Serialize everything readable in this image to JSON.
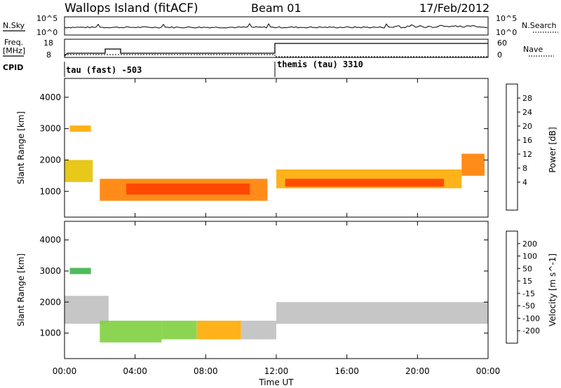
{
  "header": {
    "station": "Wallops Island (fitACF)",
    "beam": "Beam 01",
    "date": "17/Feb/2012"
  },
  "top_panels": {
    "nsky_label": "N.Sky",
    "nsearch_label": "N.Search",
    "nsky_ticks": [
      "10^5",
      "10^0"
    ],
    "nsearch_ticks": [
      "10^5",
      "10^0"
    ],
    "freq_label": "Freq.",
    "freq_unit": "[MHz]",
    "freq_ticks": [
      "18",
      "8"
    ],
    "nave_label": "Nave",
    "nave_ticks": [
      "60",
      "0"
    ],
    "cpid_label": "CPID",
    "cpid_segments": [
      {
        "name": "tau (fast) -503",
        "start_hour": 0
      },
      {
        "name": "themis (tau) 3310",
        "start_hour": 12
      }
    ]
  },
  "axes": {
    "y_label": "Slant Range [km]",
    "y_ticks": [
      "4000",
      "3000",
      "2000",
      "1000"
    ],
    "x_ticks": [
      "00:00",
      "04:00",
      "08:00",
      "12:00",
      "16:00",
      "20:00",
      "00:00"
    ],
    "x_label": "Time UT"
  },
  "colorbars": {
    "power": {
      "label": "Power [dB]",
      "ticks": [
        "28",
        "24",
        "20",
        "16",
        "12",
        "8",
        "4"
      ],
      "colors": [
        "#ff0000",
        "#ff4000",
        "#ff8000",
        "#ffaa00",
        "#e6c200",
        "#3cb44b",
        "#2e8b57",
        "#2255aa",
        "#0000ff"
      ]
    },
    "velocity": {
      "label": "Velocity [m s^-1]",
      "ticks": [
        "200",
        "100",
        "50",
        "15",
        "-15",
        "-50",
        "-100",
        "-200"
      ],
      "colors": [
        "#2233aa",
        "#2e8b57",
        "#3cb44b",
        "#80d040",
        "#c0c0c0",
        "#ffaa00",
        "#ff7700",
        "#ff4400",
        "#ff0000"
      ]
    }
  },
  "chart_data": [
    {
      "type": "heatmap",
      "title": "Power [dB]",
      "xlabel": "Time UT",
      "ylabel": "Slant Range [km]",
      "xlim_hours": [
        0,
        24
      ],
      "ylim_km": [
        180,
        4600
      ],
      "zlim": [
        0,
        30
      ],
      "regions": [
        {
          "t_start": 0.0,
          "t_end": 1.6,
          "r_low": 1300,
          "r_high": 2000,
          "value": 16
        },
        {
          "t_start": 0.3,
          "t_end": 1.5,
          "r_low": 2900,
          "r_high": 3100,
          "value": 20
        },
        {
          "t_start": 2.0,
          "t_end": 11.5,
          "r_low": 700,
          "r_high": 1400,
          "value": 22
        },
        {
          "t_start": 3.5,
          "t_end": 10.5,
          "r_low": 900,
          "r_high": 1250,
          "value": 27
        },
        {
          "t_start": 12.0,
          "t_end": 22.5,
          "r_low": 1100,
          "r_high": 1700,
          "value": 20
        },
        {
          "t_start": 12.5,
          "t_end": 21.5,
          "r_low": 1150,
          "r_high": 1400,
          "value": 27
        },
        {
          "t_start": 22.5,
          "t_end": 23.8,
          "r_low": 1500,
          "r_high": 2200,
          "value": 24
        }
      ]
    },
    {
      "type": "heatmap",
      "title": "Velocity [m s^-1]",
      "xlabel": "Time UT",
      "ylabel": "Slant Range [km]",
      "xlim_hours": [
        0,
        24
      ],
      "ylim_km": [
        180,
        4600
      ],
      "zlim": [
        -200,
        200
      ],
      "regions": [
        {
          "t_start": 0.0,
          "t_end": 2.5,
          "r_low": 1300,
          "r_high": 2200,
          "value": 0
        },
        {
          "t_start": 0.3,
          "t_end": 1.5,
          "r_low": 2900,
          "r_high": 3100,
          "value": 60
        },
        {
          "t_start": 2.0,
          "t_end": 5.5,
          "r_low": 700,
          "r_high": 1400,
          "value": 40
        },
        {
          "t_start": 5.5,
          "t_end": 7.5,
          "r_low": 800,
          "r_high": 1400,
          "value": 30
        },
        {
          "t_start": 7.5,
          "t_end": 10.0,
          "r_low": 800,
          "r_high": 1400,
          "value": -30
        },
        {
          "t_start": 10.0,
          "t_end": 12.0,
          "r_low": 800,
          "r_high": 1400,
          "value": 0
        },
        {
          "t_start": 12.0,
          "t_end": 24.0,
          "r_low": 1300,
          "r_high": 2000,
          "value": 0
        }
      ]
    }
  ]
}
